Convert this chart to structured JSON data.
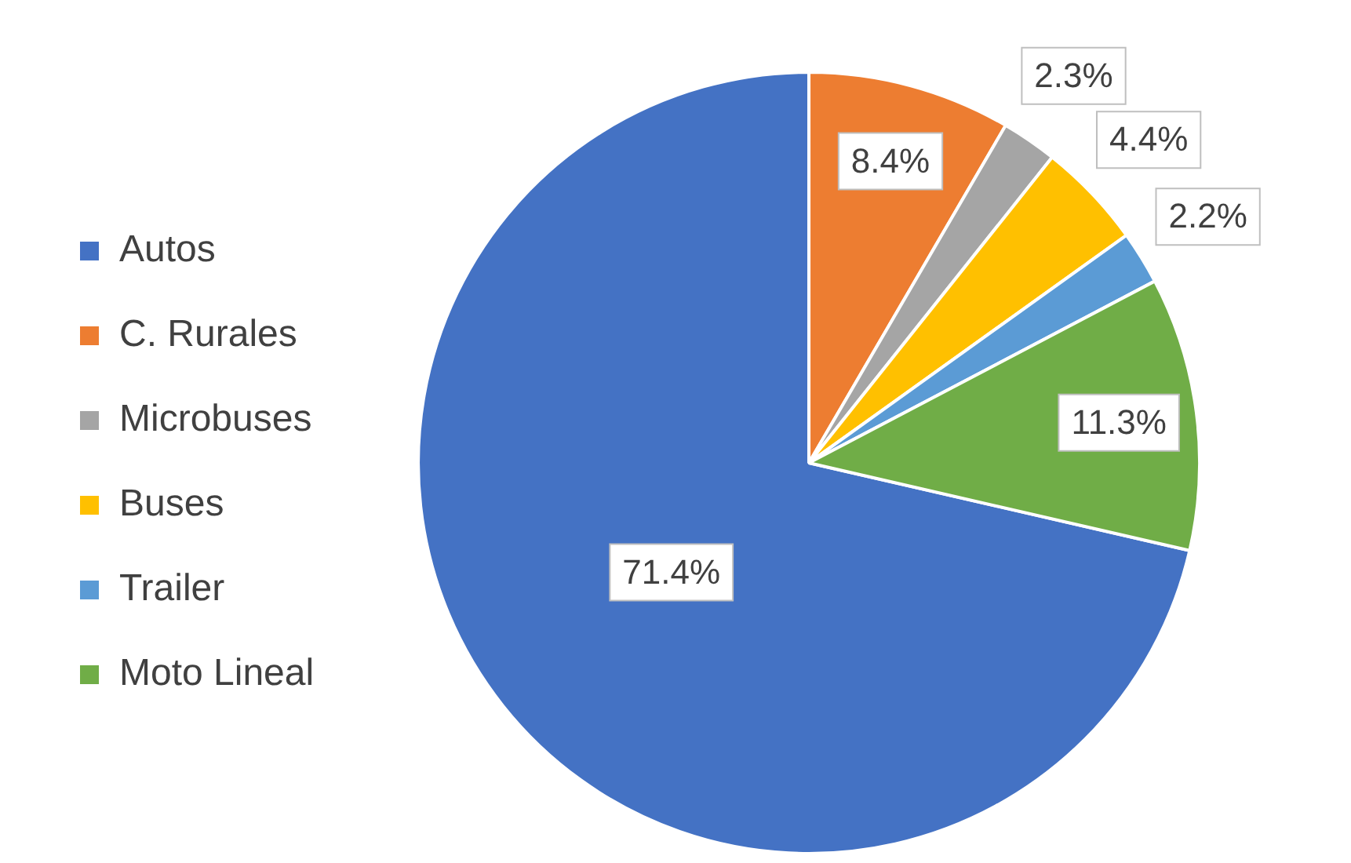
{
  "chart_data": {
    "type": "pie",
    "categories": [
      "Autos",
      "C. Rurales",
      "Microbuses",
      "Buses",
      "Trailer",
      "Moto Lineal"
    ],
    "values": [
      71.4,
      8.4,
      2.3,
      4.4,
      2.2,
      11.3
    ],
    "colors": [
      "#4472c4",
      "#ed7d31",
      "#a5a5a5",
      "#ffc000",
      "#5b9bd5",
      "#70ad47"
    ],
    "value_labels": [
      "71.4%",
      "8.4%",
      "2.3%",
      "4.4%",
      "2.2%",
      "11.3%"
    ],
    "legend": "left"
  }
}
